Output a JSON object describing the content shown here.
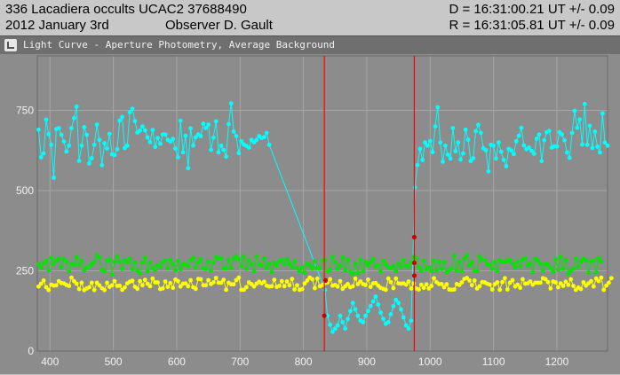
{
  "header": {
    "title": "336 Lacadiera occults UCAC2 37688490",
    "date": "2012 January 3rd",
    "observer": "Observer D. Gault",
    "d_time": "D = 16:31:00.21 UT +/- 0.09",
    "r_time": "R = 16:31:05.81 UT +/- 0.09"
  },
  "window": {
    "title": "Light Curve - Aperture Photometry, Average Background"
  },
  "colors": {
    "target": "#00ffff",
    "comp1": "#00e600",
    "comp2": "#ffff00",
    "marker": "#ff0000",
    "plot_bg": "#8c8c8c",
    "grid": "#a6a6a6"
  },
  "chart_data": {
    "type": "line",
    "xlim": [
      380,
      1280
    ],
    "ylim": [
      0,
      920
    ],
    "x_ticks": [
      400,
      500,
      600,
      700,
      800,
      900,
      1000,
      1100,
      1200
    ],
    "y_ticks": [
      0,
      250,
      500,
      750
    ],
    "grid": true,
    "event_markers": [
      833,
      975
    ],
    "series": [
      {
        "color_key": "target",
        "step": 4,
        "segments": [
          {
            "x_start": 382,
            "values": [
              690,
              604,
              616,
              721,
              676,
              643,
              540,
              692,
              695,
              674,
              653,
              622,
              640,
              695,
              726,
              762,
              593,
              640,
              698,
              674,
              585,
              601,
              643,
              706,
              658,
              579,
              648,
              631,
              677,
              613,
              611,
              629,
              718,
              730,
              633,
              640,
              744,
              755,
              717,
              681,
              687,
              700,
              688,
              666,
              651,
              689,
              636,
              664,
              646,
              675,
              675,
              658,
              653,
              661,
              631,
              604,
              718,
              619,
              671,
              570,
              694,
              640,
              666,
              675,
              670,
              709,
              695,
              706,
              627,
              665,
              716,
              619,
              640,
              627,
              606,
              707,
              772,
              684,
              670,
              617,
              654,
              644,
              639,
              634,
              658,
              651,
              658,
              670,
              664,
              667,
              680,
              643
            ]
          },
          {
            "x_start": 834,
            "values": [
              190,
              110,
              82,
              60,
              70,
              80,
              110,
              90,
              70,
              100,
              125,
              150,
              130,
              110,
              95,
              90,
              110,
              125,
              140,
              155,
              170,
              145,
              120,
              100,
              85,
              90,
              115,
              140,
              160,
              150,
              130,
              105,
              80,
              70,
              95
            ]
          },
          {
            "x_start": 976,
            "values": [
              510,
              580,
              630,
              595,
              650,
              640,
              655,
              620,
              700,
              760,
              650,
              590,
              640,
              612,
              600,
              695,
              623,
              650,
              597,
              616,
              690,
              659,
              592,
              601,
              685,
              705,
              680,
              632,
              626,
              560,
              643,
              640,
              600,
              650,
              621,
              596,
              576,
              630,
              625,
              614,
              654,
              671,
              696,
              641,
              629,
              634,
              624,
              615,
              662,
              675,
              592,
              657,
              682,
              686,
              634,
              638,
              638,
              682,
              675,
              657,
              619,
              602,
              680,
              749,
              696,
              722,
              644,
              770,
              643,
              702,
              633,
              684,
              637,
              619,
              741,
              650,
              640
            ]
          }
        ]
      },
      {
        "color_key": "comp1",
        "step": 4,
        "x_start": 382,
        "values": [
          270,
          259,
          274,
          281,
          251,
          291,
          271,
          282,
          289,
          261,
          286,
          280,
          249,
          272,
          268,
          293,
          269,
          282,
          252,
          260,
          263,
          271,
          278,
          299,
          291,
          252,
          249,
          282,
          285,
          238,
          278,
          296,
          279,
          256,
          283,
          276,
          288,
          255,
          276,
          251,
          242,
          276,
          291,
          249,
          276,
          259,
          253,
          268,
          262,
          277,
          282,
          258,
          284,
          270,
          252,
          281,
          255,
          271,
          269,
          264,
          283,
          291,
          260,
          276,
          286,
          258,
          256,
          279,
          251,
          276,
          292,
          288,
          290,
          258,
          258,
          285,
          259,
          288,
          295,
          286,
          265,
          295,
          256,
          283,
          271,
          248,
          295,
          270,
          267,
          289,
          258,
          272,
          246,
          275,
          266,
          280,
          284,
          270,
          286,
          272,
          261,
          280,
          259,
          248,
          262,
          244,
          273,
          267,
          257,
          280,
          259,
          258,
          283,
          285,
          248,
          253,
          293,
          278,
          256,
          267,
          292,
          251,
          284,
          247,
          241,
          272,
          243,
          285,
          248,
          278,
          267,
          277,
          288,
          264,
          268,
          247,
          282,
          270,
          260,
          258,
          265,
          249,
          274,
          262,
          284,
          267,
          263,
          276,
          293,
          290,
          262,
          250,
          282,
          255,
          262,
          250,
          283,
          251,
          279,
          256,
          278,
          245,
          253,
          257,
          298,
          250,
          279,
          248,
          289,
          299,
          267,
          277,
          250,
          250,
          295,
          284,
          284,
          270,
          270,
          256,
          278,
          249,
          283,
          278,
          279,
          280,
          285,
          272,
          261,
          279,
          264,
          285,
          290,
          267,
          273,
          246,
          288,
          282,
          271,
          251,
          271,
          270,
          259,
          247,
          286,
          254,
          293,
          256,
          284,
          241,
          250,
          257,
          289,
          263,
          279,
          289,
          282,
          244,
          279,
          283,
          245,
          290,
          279
        ]
      },
      {
        "color_key": "comp2",
        "step": 4,
        "x_start": 382,
        "values": [
          201,
          210,
          220,
          199,
          190,
          207,
          204,
          205,
          218,
          212,
          211,
          206,
          203,
          229,
          218,
          210,
          193,
          213,
          190,
          195,
          199,
          213,
          190,
          213,
          205,
          196,
          190,
          213,
          200,
          205,
          218,
          203,
          204,
          191,
          198,
          211,
          216,
          219,
          200,
          194,
          218,
          205,
          222,
          210,
          202,
          226,
          214,
          214,
          193,
          195,
          217,
          200,
          212,
          197,
          223,
          218,
          201,
          210,
          211,
          202,
          221,
          199,
          194,
          225,
          224,
          205,
          205,
          221,
          209,
          214,
          228,
          213,
          213,
          222,
          191,
          213,
          208,
          208,
          221,
          229,
          191,
          191,
          199,
          214,
          209,
          201,
          210,
          216,
          211,
          216,
          204,
          201,
          202,
          222,
          200,
          203,
          218,
          202,
          217,
          205,
          225,
          192,
          205,
          191,
          193,
          211,
          220,
          229,
          224,
          196,
          226,
          202,
          206,
          212,
          214,
          224,
          204,
          206,
          201,
          218,
          194,
          202,
          209,
          199,
          202,
          226,
          209,
          217,
          209,
          206,
          223,
          200,
          211,
          212,
          204,
          197,
          194,
          191,
          226,
          215,
          196,
          226,
          211,
          210,
          211,
          207,
          217,
          195,
          211,
          195,
          192,
          207,
          197,
          208,
          195,
          203,
          227,
          215,
          209,
          209,
          199,
          208,
          192,
          191,
          192,
          209,
          206,
          214,
          225,
          228,
          220,
          205,
          220,
          195,
          202,
          215,
          214,
          210,
          207,
          192,
          208,
          214,
          191,
          215,
          227,
          192,
          213,
          221,
          201,
          207,
          197,
          224,
          210,
          211,
          217,
          207,
          213,
          213,
          213,
          227,
          224,
          215,
          195,
          217,
          214,
          199,
          211,
          203,
          216,
          206,
          224,
          203,
          191,
          198,
          193,
          214,
          204,
          211,
          218,
          201,
          226,
          218,
          229,
          191,
          204,
          213,
          227
        ]
      }
    ]
  }
}
